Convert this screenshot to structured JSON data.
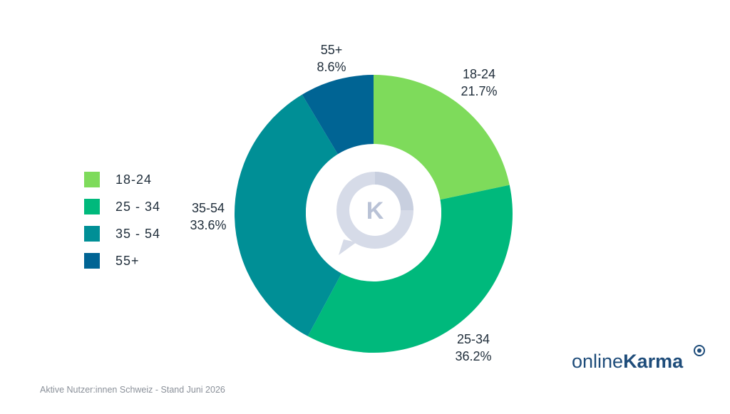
{
  "chart_data": {
    "type": "pie",
    "donut": true,
    "categories": [
      "18-24",
      "25-34",
      "35-54",
      "55+"
    ],
    "values": [
      21.7,
      36.2,
      33.6,
      8.6
    ],
    "value_labels": [
      "21.7%",
      "36.2%",
      "33.6%",
      "8.6%"
    ],
    "colors": [
      "#7edb5b",
      "#00b97c",
      "#008f96",
      "#006494"
    ],
    "legend": {
      "position": "left",
      "entries": [
        "18-24",
        "25 - 34",
        "35 - 54",
        "55+"
      ]
    },
    "title": "",
    "xlabel": "",
    "ylabel": "",
    "center_logo": "chat-bubble-k-icon"
  },
  "footnote": "Aktive Nutzer:innen Schweiz - Stand Juni 2026",
  "brand": {
    "prefix": "online",
    "suffix": "Karma",
    "color": "#1e4c7a"
  }
}
